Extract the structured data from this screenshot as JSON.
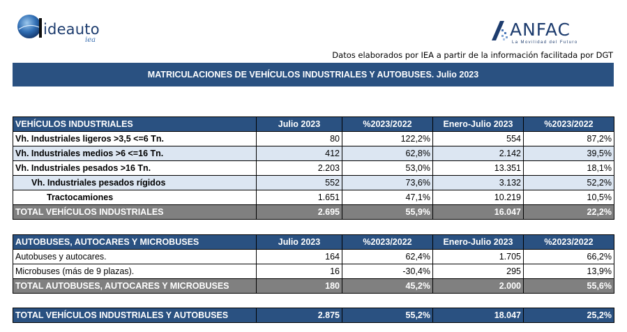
{
  "logos": {
    "left": {
      "name": "ideauto",
      "subtitle": "iea",
      "color": "#1d3c6e"
    },
    "right": {
      "name": "ANFAC",
      "tagline": "La Movilidad del Futuro",
      "color": "#1d3c6e"
    }
  },
  "source_note": "Datos elaborados por IEA a partir de la información facilitada por DGT",
  "banner_title": "MATRICULACIONES DE VEHÍCULOS INDUSTRIALES Y AUTOBUSES.  Julio 2023",
  "colors": {
    "header_bg": "#2a5181",
    "total_bg": "#808080",
    "shade_bg": "#dce6f2"
  },
  "industriales": {
    "headers": [
      "VEHÍCULOS INDUSTRIALES",
      "Julio 2023",
      "%2023/2022",
      "Enero-Julio 2023",
      "%2023/2022"
    ],
    "rows": [
      {
        "label": "Vh. Industriales ligeros >3,5 <=6 Tn.",
        "month": "80",
        "month_pct": "122,2%",
        "ytd": "554",
        "ytd_pct": "87,2%"
      },
      {
        "label": "Vh. Industriales medios >6  <=16 Tn.",
        "month": "412",
        "month_pct": "62,8%",
        "ytd": "2.142",
        "ytd_pct": "39,5%"
      },
      {
        "label": "Vh. Industriales  pesados >16 Tn.",
        "month": "2.203",
        "month_pct": "53,0%",
        "ytd": "13.351",
        "ytd_pct": "18,1%"
      },
      {
        "label": "Vh. Industriales pesados rígidos",
        "month": "552",
        "month_pct": "73,6%",
        "ytd": "3.132",
        "ytd_pct": "52,2%"
      },
      {
        "label": "Tractocamiones",
        "month": "1.651",
        "month_pct": "47,1%",
        "ytd": "10.219",
        "ytd_pct": "10,5%"
      }
    ],
    "total": {
      "label": "TOTAL VEHÍCULOS INDUSTRIALES",
      "month": "2.695",
      "month_pct": "55,9%",
      "ytd": "16.047",
      "ytd_pct": "22,2%"
    }
  },
  "autobuses": {
    "headers": [
      "AUTOBUSES, AUTOCARES Y MICROBUSES",
      "Julio 2023",
      "%2023/2022",
      "Enero-Julio 2023",
      "%2023/2022"
    ],
    "rows": [
      {
        "label": "Autobuses y autocares.",
        "month": "164",
        "month_pct": "62,4%",
        "ytd": "1.705",
        "ytd_pct": "66,2%"
      },
      {
        "label": "Microbuses (más de 9 plazas).",
        "month": "16",
        "month_pct": "-30,4%",
        "ytd": "295",
        "ytd_pct": "13,9%"
      }
    ],
    "total": {
      "label": "TOTAL AUTOBUSES, AUTOCARES Y MICROBUSES",
      "month": "180",
      "month_pct": "45,2%",
      "ytd": "2.000",
      "ytd_pct": "55,6%"
    }
  },
  "grand_total": {
    "label": "TOTAL VEHÍCULOS INDUSTRIALES Y AUTOBUSES",
    "month": "2.875",
    "month_pct": "55,2%",
    "ytd": "18.047",
    "ytd_pct": "25,2%"
  }
}
